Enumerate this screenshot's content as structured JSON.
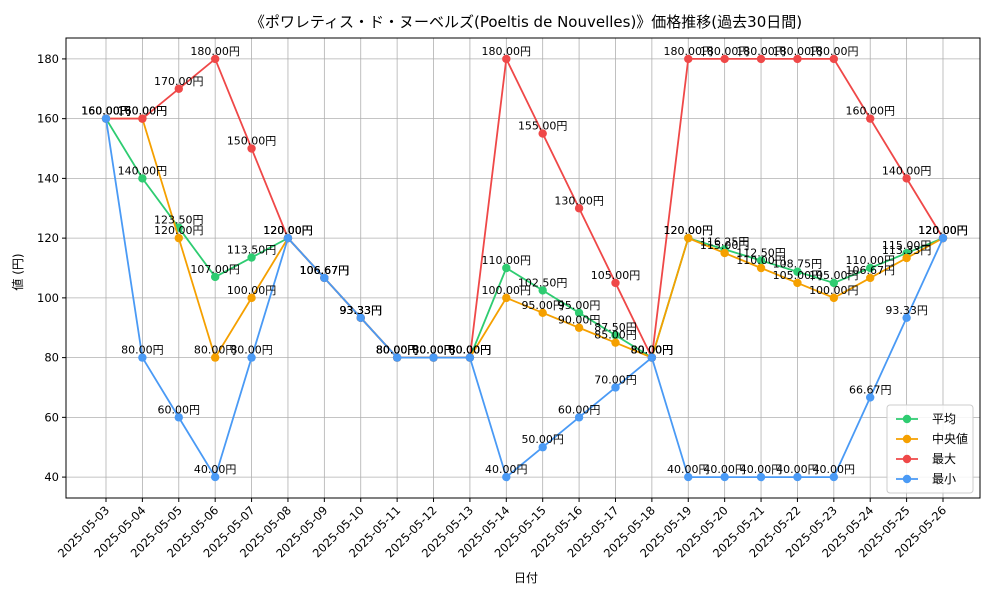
{
  "chart_data": {
    "type": "line",
    "title": "《ポワレティス・ド・ヌーベルズ(Poeltis de Nouvelles)》価格推移(過去30日間)",
    "xlabel": "日付",
    "ylabel": "値 (円)",
    "ylim": [
      33,
      187
    ],
    "yticks": [
      40,
      60,
      80,
      100,
      120,
      140,
      160,
      180
    ],
    "grid": true,
    "legend_position": "bottom-right",
    "value_suffix": "円",
    "categories": [
      "2025-05-03",
      "2025-05-04",
      "2025-05-05",
      "2025-05-06",
      "2025-05-07",
      "2025-05-08",
      "2025-05-09",
      "2025-05-10",
      "2025-05-11",
      "2025-05-12",
      "2025-05-13",
      "2025-05-14",
      "2025-05-15",
      "2025-05-16",
      "2025-05-17",
      "2025-05-18",
      "2025-05-19",
      "2025-05-20",
      "2025-05-21",
      "2025-05-22",
      "2025-05-23",
      "2025-05-24",
      "2025-05-25",
      "2025-05-26"
    ],
    "series": [
      {
        "name": "平均",
        "color": "#2ecc71",
        "values": [
          160,
          140,
          123.5,
          107,
          113.5,
          120,
          106.67,
          93.33,
          80,
          80,
          80,
          110,
          102.5,
          95,
          87.5,
          80,
          120,
          116.25,
          112.5,
          108.75,
          105,
          110,
          115,
          120
        ]
      },
      {
        "name": "中央値",
        "color": "#f5a000",
        "values": [
          160,
          160,
          120,
          80,
          100,
          120,
          106.67,
          93.33,
          80,
          80,
          80,
          100,
          95,
          90,
          85,
          80,
          120,
          115,
          110,
          105,
          100,
          106.67,
          113.33,
          120
        ]
      },
      {
        "name": "最大",
        "color": "#ef4848",
        "values": [
          160,
          160,
          170,
          180,
          150,
          120,
          106.67,
          93.33,
          80,
          80,
          80,
          180,
          155,
          130,
          105,
          80,
          180,
          180,
          180,
          180,
          180,
          160,
          140,
          120
        ]
      },
      {
        "name": "最小",
        "color": "#4a9af5",
        "values": [
          160,
          80,
          60,
          40,
          80,
          120,
          106.67,
          93.33,
          80,
          80,
          80,
          40,
          50,
          60,
          70,
          80,
          40,
          40,
          40,
          40,
          40,
          66.67,
          93.33,
          120
        ]
      }
    ]
  }
}
